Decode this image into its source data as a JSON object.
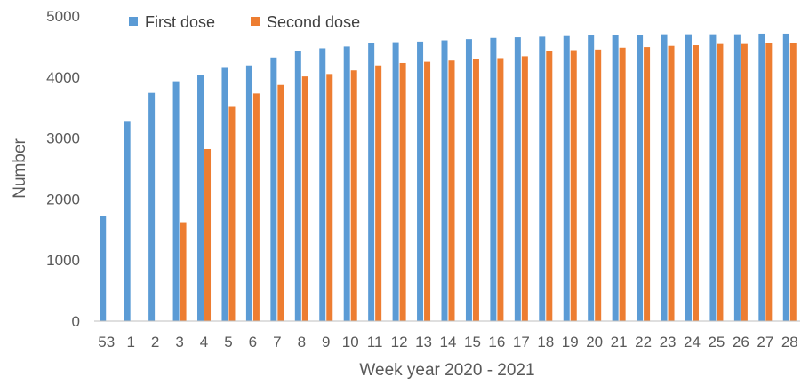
{
  "chart_data": {
    "type": "bar",
    "title": "",
    "xlabel": "Week year 2020 - 2021",
    "ylabel": "Number",
    "ylim": [
      0,
      5000
    ],
    "yticks": [
      0,
      1000,
      2000,
      3000,
      4000,
      5000
    ],
    "grid": false,
    "legend_position": "top-left",
    "categories": [
      "53",
      "1",
      "2",
      "3",
      "4",
      "5",
      "6",
      "7",
      "8",
      "9",
      "10",
      "11",
      "12",
      "13",
      "14",
      "15",
      "16",
      "17",
      "18",
      "19",
      "20",
      "21",
      "22",
      "23",
      "24",
      "25",
      "26",
      "27",
      "28"
    ],
    "series": [
      {
        "name": "First dose",
        "color": "#5b9bd5",
        "values": [
          1720,
          3280,
          3740,
          3930,
          4040,
          4150,
          4190,
          4320,
          4430,
          4470,
          4500,
          4550,
          4570,
          4580,
          4600,
          4620,
          4640,
          4650,
          4660,
          4670,
          4680,
          4690,
          4690,
          4700,
          4700,
          4700,
          4700,
          4710,
          4710
        ]
      },
      {
        "name": "Second dose",
        "color": "#ed7d31",
        "values": [
          0,
          0,
          0,
          1620,
          2820,
          3510,
          3730,
          3870,
          4010,
          4050,
          4110,
          4190,
          4230,
          4250,
          4270,
          4290,
          4310,
          4340,
          4420,
          4440,
          4450,
          4480,
          4490,
          4510,
          4520,
          4540,
          4540,
          4550,
          4560
        ]
      }
    ]
  }
}
